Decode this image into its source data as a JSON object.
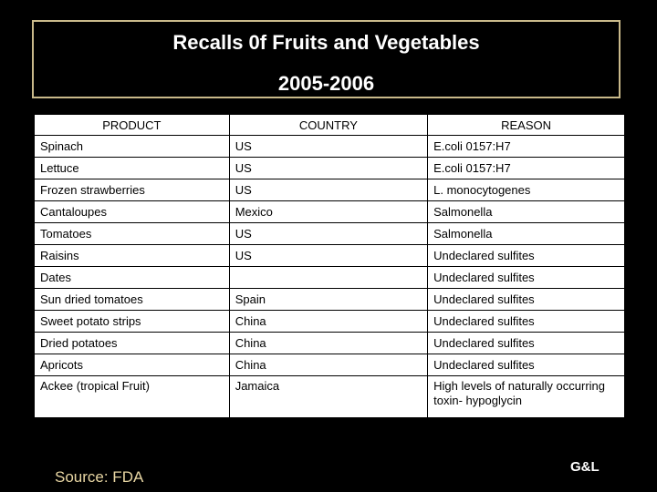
{
  "title": {
    "line1": "Recalls 0f Fruits and Vegetables",
    "line2": "2005-2006"
  },
  "table": {
    "headers": [
      "PRODUCT",
      "COUNTRY",
      "REASON"
    ],
    "rows": [
      [
        "Spinach",
        "US",
        "E.coli 0157:H7"
      ],
      [
        "Lettuce",
        "US",
        "E.coli 0157:H7"
      ],
      [
        "Frozen strawberries",
        "US",
        "L. monocytogenes"
      ],
      [
        "Cantaloupes",
        "Mexico",
        "Salmonella"
      ],
      [
        "Tomatoes",
        "US",
        "Salmonella"
      ],
      [
        "Raisins",
        "US",
        "Undeclared sulfites"
      ],
      [
        "Dates",
        "",
        "Undeclared sulfites"
      ],
      [
        "Sun dried tomatoes",
        "Spain",
        "Undeclared sulfites"
      ],
      [
        "Sweet potato strips",
        "China",
        "Undeclared sulfites"
      ],
      [
        "Dried potatoes",
        "China",
        "Undeclared sulfites"
      ],
      [
        "Apricots",
        "China",
        "Undeclared sulfites"
      ],
      [
        "Ackee (tropical Fruit)",
        "Jamaica",
        "High levels of naturally occurring toxin- hypoglycin"
      ]
    ]
  },
  "footer": {
    "source": "Source: FDA",
    "badge": "G&L"
  },
  "colors": {
    "background": "#000000",
    "title_text": "#ffffff",
    "title_border": "#c9b98a",
    "source_text": "#e8d6a3"
  }
}
